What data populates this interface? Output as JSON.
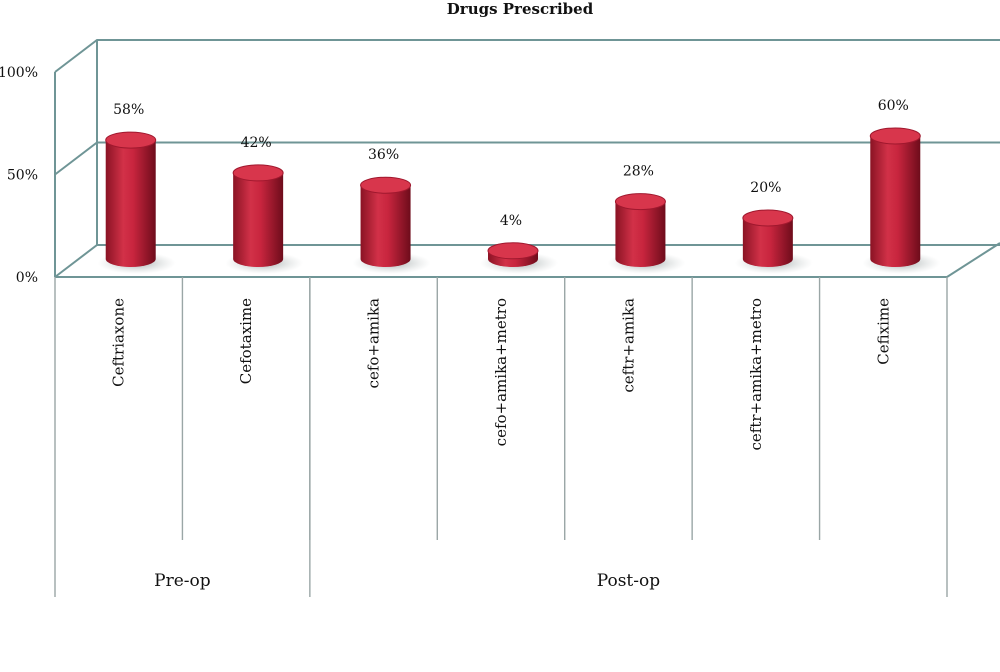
{
  "chart_data": {
    "type": "bar",
    "title": "Drugs Prescribed",
    "categories": [
      "Ceftriaxone",
      "Cefotaxime",
      "cefo+amika",
      "cefo+amika+metro",
      "ceftr+amika",
      "ceftr+amika+metro",
      "Cefixime"
    ],
    "values": [
      58,
      42,
      36,
      4,
      28,
      20,
      60
    ],
    "data_labels": [
      "58%",
      "42%",
      "36%",
      "4%",
      "28%",
      "20%",
      "60%"
    ],
    "groups": [
      {
        "label": "Pre-op",
        "count": 2
      },
      {
        "label": "Post-op",
        "count": 5
      }
    ],
    "y_ticks": [
      "0%",
      "50%",
      "100%"
    ],
    "ylim": [
      0,
      100
    ],
    "grid": true,
    "style": "3d-cylinder",
    "colors": {
      "bar": "#c0223a",
      "bar_dark": "#7a0f20",
      "bar_top": "#d8364c",
      "grid": "#6f9596",
      "floor_shadow": "#c9cfcf"
    }
  }
}
